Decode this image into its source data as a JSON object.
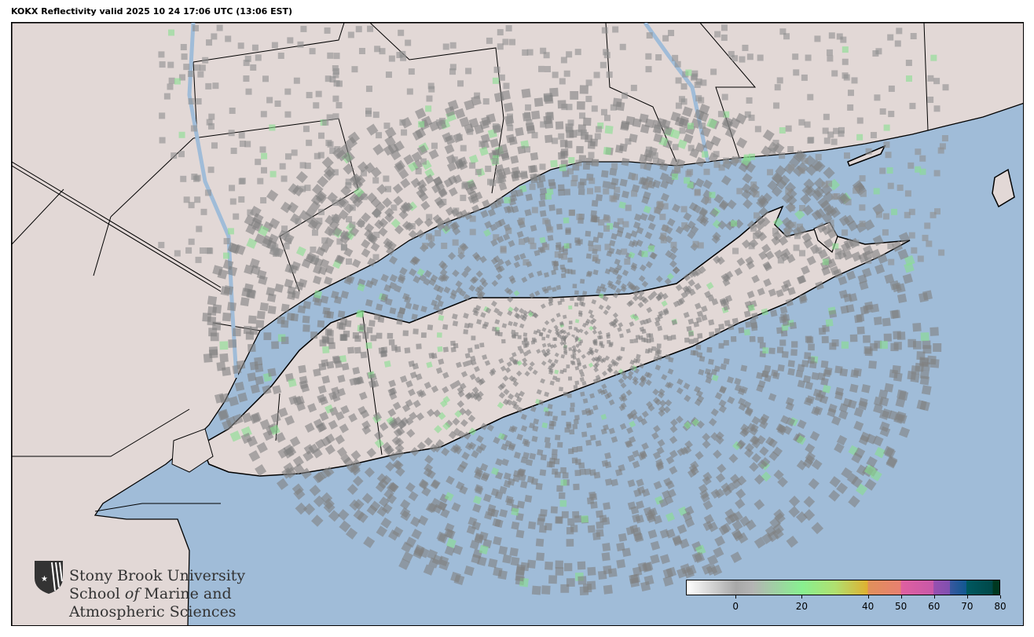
{
  "title": "KOKX Reflectivity valid 2025 10 24 17:06 UTC (13:06 EST)",
  "map": {
    "land_color": "#e2d8d6",
    "water_color": "#a0bcd8",
    "border_color": "#000000"
  },
  "logo": {
    "line1": "Stony Brook University",
    "line2a": "School ",
    "line2b": "of",
    "line2c": " Marine and",
    "line3": "Atmospheric Sciences",
    "icon": "shield-star-icon"
  },
  "colorbar": {
    "range": [
      -15,
      80
    ],
    "ticks": [
      "0",
      "20",
      "40",
      "50",
      "60",
      "70",
      "80"
    ],
    "tick_values": [
      0,
      20,
      40,
      50,
      60,
      70,
      80
    ],
    "stops": [
      {
        "v": -15,
        "c": "#ffffff"
      },
      {
        "v": 0,
        "c": "#a8a8a8"
      },
      {
        "v": 5,
        "c": "#b4b4b4"
      },
      {
        "v": 20,
        "c": "#88f090"
      },
      {
        "v": 30,
        "c": "#b0e070"
      },
      {
        "v": 40,
        "c": "#e0b030"
      },
      {
        "v": 40.01,
        "c": "#e0905a"
      },
      {
        "v": 50,
        "c": "#e88070"
      },
      {
        "v": 50.01,
        "c": "#e060a0"
      },
      {
        "v": 60,
        "c": "#c858a8"
      },
      {
        "v": 60.01,
        "c": "#9850b0"
      },
      {
        "v": 65,
        "c": "#8050b0"
      },
      {
        "v": 65.01,
        "c": "#3858a0"
      },
      {
        "v": 70,
        "c": "#105890"
      },
      {
        "v": 70.01,
        "c": "#005860"
      },
      {
        "v": 78,
        "c": "#004848"
      },
      {
        "v": 78.01,
        "c": "#003820"
      },
      {
        "v": 80,
        "c": "#003820"
      }
    ]
  }
}
